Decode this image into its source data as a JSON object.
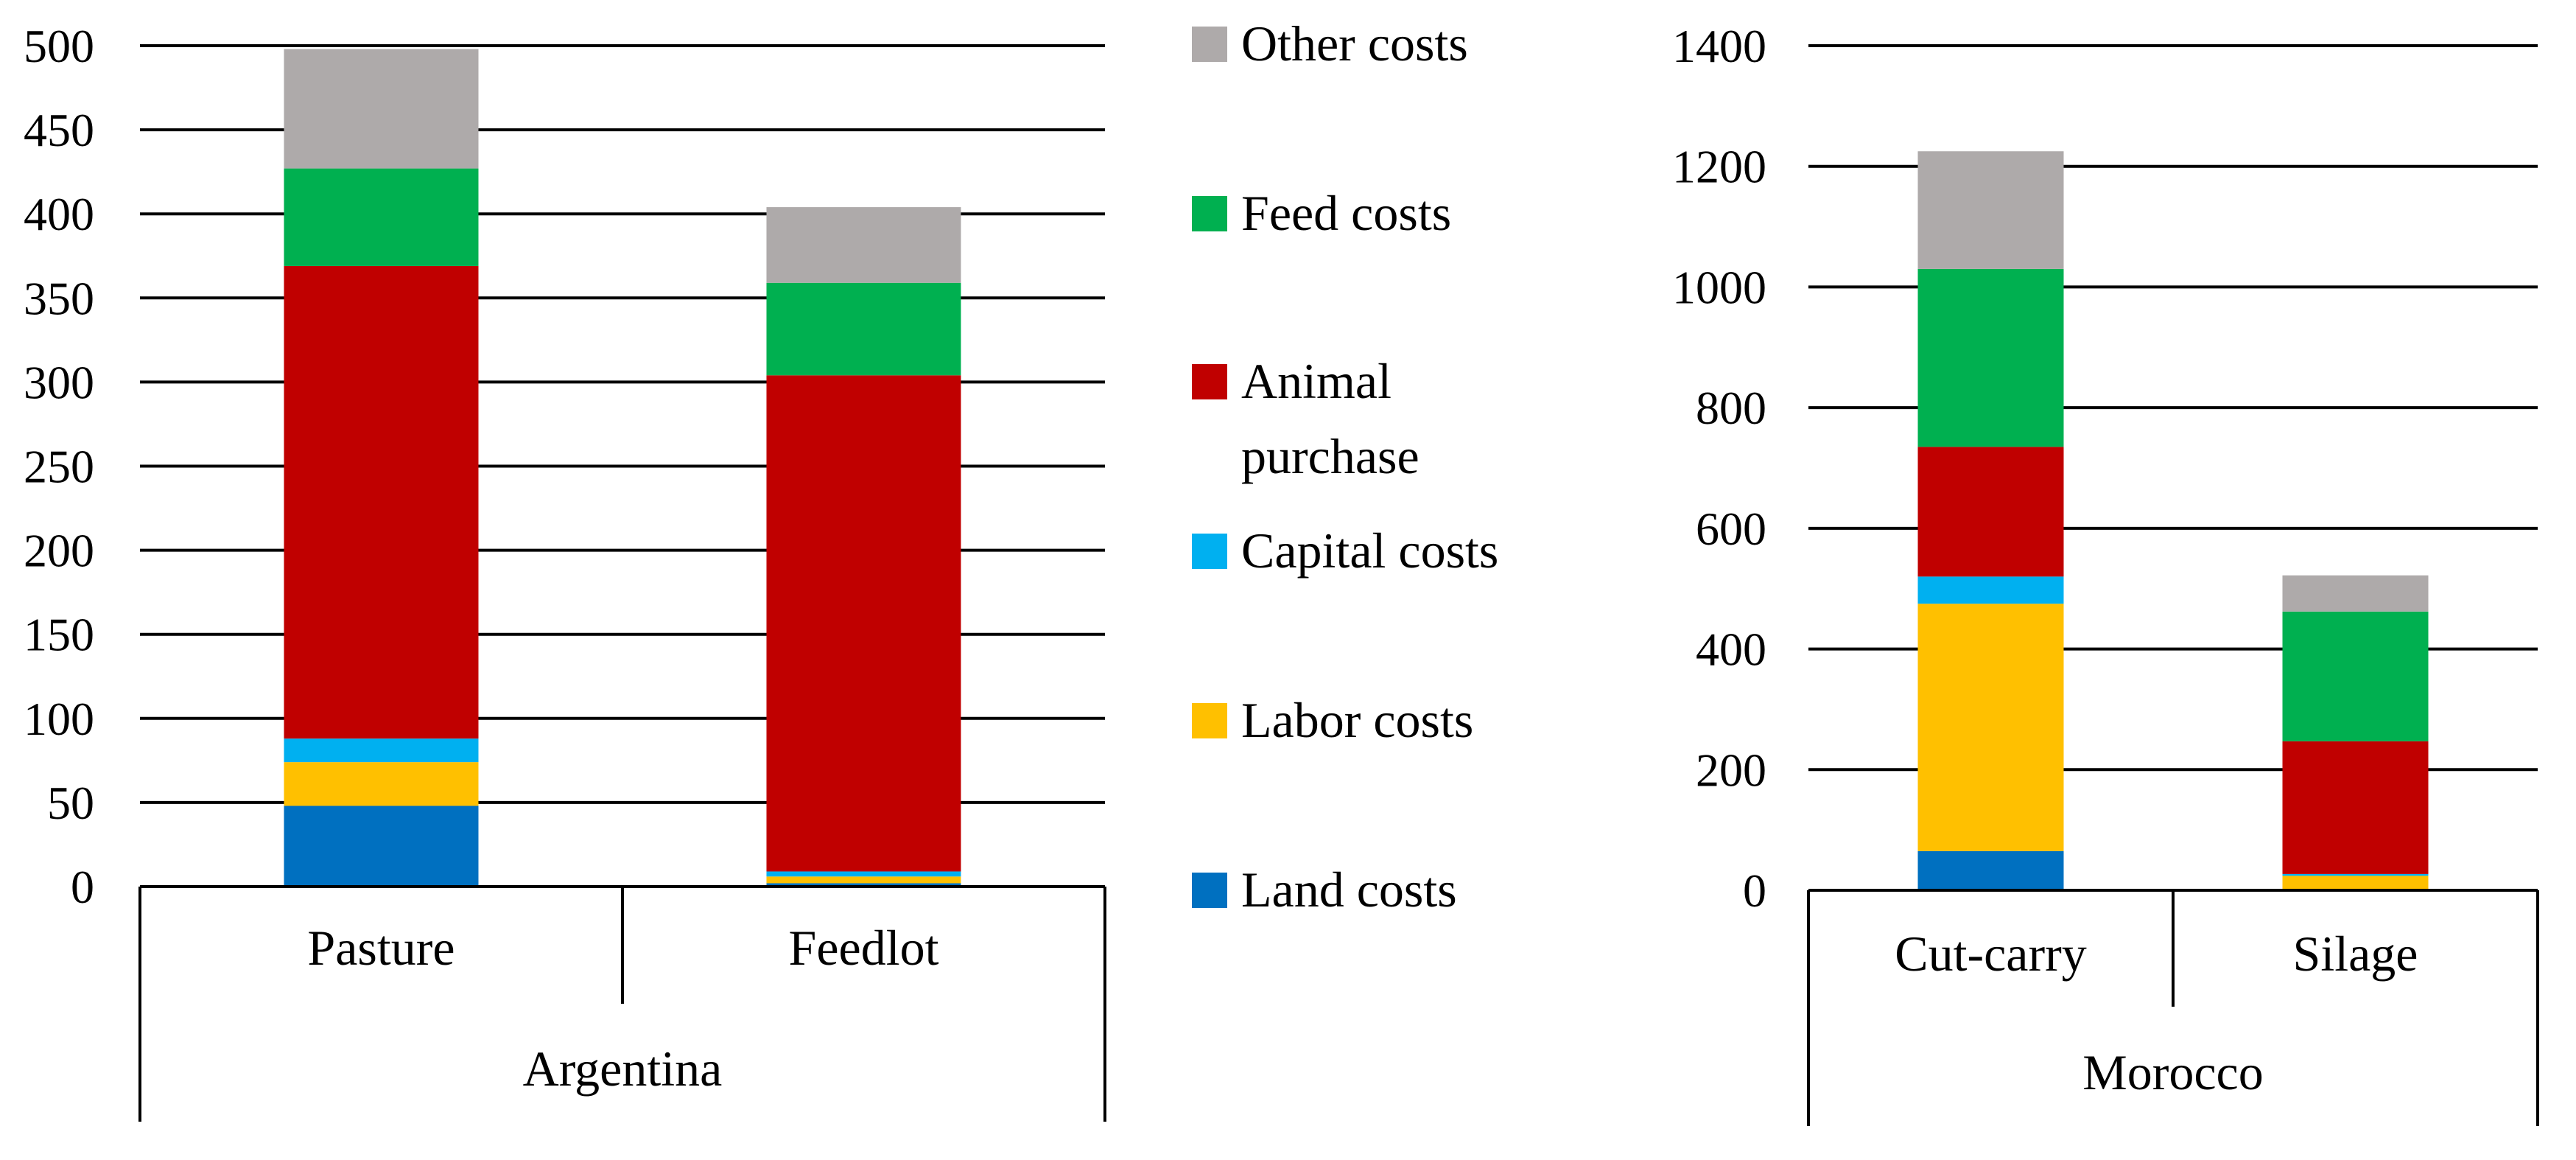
{
  "chart_data": [
    {
      "type": "bar",
      "stacked": true,
      "group": "Argentina",
      "categories": [
        "Pasture",
        "Feedlot"
      ],
      "ylim": [
        0,
        500
      ],
      "yticks": [
        0,
        50,
        100,
        150,
        200,
        250,
        300,
        350,
        400,
        450,
        500
      ],
      "grid": true,
      "series": [
        {
          "name": "Land costs",
          "color": "#0070C0",
          "values": [
            48,
            2
          ]
        },
        {
          "name": "Labor costs",
          "color": "#FFC000",
          "values": [
            26,
            4
          ]
        },
        {
          "name": "Capital costs",
          "color": "#00B0F0",
          "values": [
            14,
            3
          ]
        },
        {
          "name": "Animal purchase",
          "color": "#C00000",
          "values": [
            281,
            295
          ]
        },
        {
          "name": "Feed costs",
          "color": "#00B050",
          "values": [
            58,
            55
          ]
        },
        {
          "name": "Other costs",
          "color": "#AEAAAA",
          "values": [
            71,
            45
          ]
        }
      ]
    },
    {
      "type": "bar",
      "stacked": true,
      "group": "Morocco",
      "categories": [
        "Cut-carry",
        "Silage"
      ],
      "ylim": [
        0,
        1400
      ],
      "yticks": [
        0,
        200,
        400,
        600,
        800,
        1000,
        1200,
        1400
      ],
      "grid": true,
      "series": [
        {
          "name": "Land costs",
          "color": "#0070C0",
          "values": [
            65,
            2
          ]
        },
        {
          "name": "Labor costs",
          "color": "#FFC000",
          "values": [
            410,
            22
          ]
        },
        {
          "name": "Capital costs",
          "color": "#00B0F0",
          "values": [
            45,
            3
          ]
        },
        {
          "name": "Animal purchase",
          "color": "#C00000",
          "values": [
            215,
            220
          ]
        },
        {
          "name": "Feed costs",
          "color": "#00B050",
          "values": [
            295,
            215
          ]
        },
        {
          "name": "Other costs",
          "color": "#AEAAAA",
          "values": [
            195,
            60
          ]
        }
      ]
    }
  ],
  "legend": {
    "position": "between-charts",
    "items": [
      {
        "label_lines": [
          "Other costs"
        ],
        "color": "#AEAAAA"
      },
      {
        "label_lines": [
          "Feed costs"
        ],
        "color": "#00B050"
      },
      {
        "label_lines": [
          "Animal",
          "purchase"
        ],
        "color": "#C00000"
      },
      {
        "label_lines": [
          "Capital costs"
        ],
        "color": "#00B0F0"
      },
      {
        "label_lines": [
          "Labor costs"
        ],
        "color": "#FFC000"
      },
      {
        "label_lines": [
          "Land costs"
        ],
        "color": "#0070C0"
      }
    ]
  }
}
